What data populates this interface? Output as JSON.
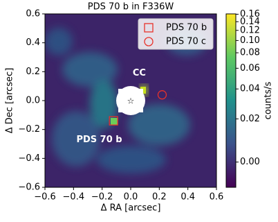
{
  "chart_data": {
    "type": "image",
    "title": "PDS 70 b in F336W",
    "x_label": "Δ RA [arcsec]",
    "y_label": "Δ Dec [arcsec]",
    "xlim": [
      -0.6,
      0.6
    ],
    "ylim": [
      -0.6,
      0.6
    ],
    "xticks": [
      {
        "value": -0.6,
        "label": "−0.6"
      },
      {
        "value": -0.4,
        "label": "−0.4"
      },
      {
        "value": -0.2,
        "label": "−0.2"
      },
      {
        "value": 0,
        "label": "0.0"
      },
      0.2,
      0.4,
      0.6
    ],
    "yticks": [
      {
        "value": -0.6,
        "label": "−0.6"
      },
      {
        "value": -0.4,
        "label": "−0.4"
      },
      {
        "value": -0.2,
        "label": "−0.2"
      },
      {
        "value": 0,
        "label": "0.0"
      },
      0.2,
      0.4,
      0.6
    ],
    "colorbar": {
      "label": "counts/s",
      "scale": "asinh",
      "scale_param": 0.024,
      "clim": [
        -0.011,
        0.161
      ],
      "colors": [
        "#440154",
        "#3b528b",
        "#21918c",
        "#5ec962",
        "#fde725"
      ],
      "ticks": [
        {
          "value": 0,
          "label": "0.00"
        },
        0.02,
        0.04,
        0.06,
        0.08,
        {
          "value": 0.1,
          "label": "0.10"
        },
        0.12,
        0.14,
        0.16
      ]
    },
    "markers": [
      {
        "name": "PDS 70 b",
        "shape": "square",
        "color": "#e8322a",
        "x": -0.12,
        "y": -0.14
      },
      {
        "name": "PDS 70 c",
        "shape": "circle",
        "color": "#e8322a",
        "x": 0.22,
        "y": 0.04
      }
    ],
    "annotations": [
      {
        "text": "CC",
        "x": 0.06,
        "y": 0.19
      },
      {
        "text": "PDS 70 b",
        "x": -0.22,
        "y": -0.27
      }
    ]
  }
}
